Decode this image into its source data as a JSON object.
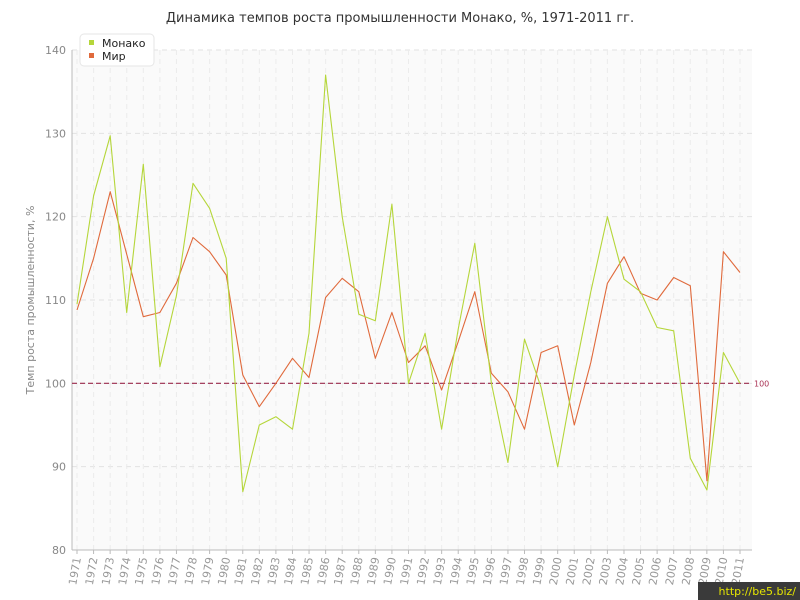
{
  "chart_data": {
    "type": "line",
    "title": "Динамика темпов роста промышленности Монако, %, 1971-2011 гг.",
    "xlabel": "",
    "ylabel": "Темп роста промышленности, %",
    "ylim": [
      80,
      140
    ],
    "yticks": [
      80,
      90,
      100,
      110,
      120,
      130,
      140
    ],
    "grid": true,
    "legend_position": "top-left",
    "reference_line": {
      "value": 100,
      "label": "100",
      "color": "#9b2b4d"
    },
    "categories": [
      "1971",
      "1972",
      "1973",
      "1974",
      "1975",
      "1976",
      "1977",
      "1978",
      "1979",
      "1980",
      "1981",
      "1982",
      "1983",
      "1984",
      "1985",
      "1986",
      "1987",
      "1988",
      "1989",
      "1990",
      "1991",
      "1992",
      "1993",
      "1994",
      "1995",
      "1996",
      "1997",
      "1998",
      "1999",
      "2000",
      "2001",
      "2002",
      "2003",
      "2004",
      "2005",
      "2006",
      "2007",
      "2008",
      "2009",
      "2010",
      "2011"
    ],
    "series": [
      {
        "name": "Монако",
        "color": "#b5d63a",
        "values": [
          109.5,
          122.5,
          129.7,
          108.5,
          126.3,
          102.0,
          110.5,
          124.0,
          121.0,
          115.0,
          87.0,
          95.0,
          96.0,
          94.5,
          106.0,
          137.0,
          120.0,
          108.3,
          107.5,
          121.5,
          100.0,
          106.0,
          94.5,
          106.5,
          116.8,
          100.0,
          90.5,
          105.3,
          99.5,
          90.0,
          101.0,
          111.0,
          120.0,
          112.5,
          111.0,
          106.7,
          106.3,
          91.0,
          87.2,
          103.7,
          100.0
        ]
      },
      {
        "name": "Мир",
        "color": "#e06a3c",
        "values": [
          108.8,
          115.0,
          123.0,
          115.5,
          108.0,
          108.5,
          112.0,
          117.5,
          115.8,
          113.0,
          101.0,
          97.2,
          100.0,
          103.0,
          100.7,
          110.3,
          112.6,
          111.0,
          103.0,
          108.5,
          102.5,
          104.5,
          99.2,
          105.0,
          111.0,
          101.2,
          99.0,
          94.5,
          103.7,
          104.5,
          95.0,
          102.5,
          112.0,
          115.2,
          110.8,
          110.0,
          112.7,
          111.7,
          88.3,
          115.8,
          113.3
        ]
      }
    ]
  },
  "watermark": "http://be5.biz/"
}
